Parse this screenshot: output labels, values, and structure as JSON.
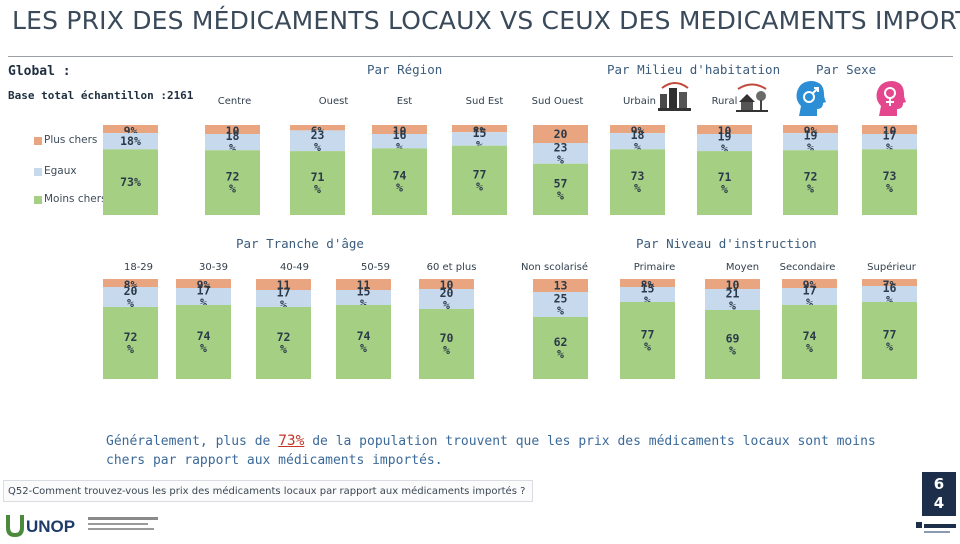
{
  "title": "LES PRIX DES MÉDICAMENTS LOCAUX VS CEUX DES MEDICAMENTS IMPORTÉS",
  "global_label": "Global :",
  "base_label": "Base total échantillon :2161",
  "legend": [
    {
      "label": "Plus chers",
      "color": "#e9a57f"
    },
    {
      "label": "Egaux",
      "color": "#c7d9ec"
    },
    {
      "label": "Moins chers",
      "color": "#a5cf83"
    }
  ],
  "section_headers": {
    "region": "Par Région",
    "milieu": "Par Milieu d'habitation",
    "sexe": "Par Sexe",
    "age": "Par Tranche d'âge",
    "instruction": "Par Niveau d'instruction"
  },
  "summary": {
    "before": "Généralement, plus de ",
    "highlight": "73%",
    "after": " de la population trouvent que les prix des médicaments locaux sont moins chers par rapport aux médicaments importés."
  },
  "question": "Q52-Comment trouvez-vous les prix des médicaments locaux par rapport aux médicaments importés ?",
  "page_number": [
    "6",
    "4"
  ],
  "logo_text": "UNOP",
  "colors": {
    "plus": "#e9a57f",
    "egaux": "#c7d9ec",
    "moins": "#a5cf83",
    "header": "#3b5c7c"
  },
  "chart_data": [
    {
      "type": "bar",
      "stacked": true,
      "group": "Global",
      "categories": [
        "Global"
      ],
      "series": [
        {
          "name": "Plus chers",
          "values": [
            9
          ]
        },
        {
          "name": "Egaux",
          "values": [
            18
          ]
        },
        {
          "name": "Moins chers",
          "values": [
            73
          ]
        }
      ],
      "labels": {
        "Plus chers": [
          "9%"
        ],
        "Egaux": [
          "18%"
        ],
        "Moins chers": [
          "73%"
        ]
      }
    },
    {
      "type": "bar",
      "stacked": true,
      "group": "Par Région",
      "categories": [
        "Centre",
        "Ouest",
        "Est",
        "Sud Est",
        "Sud Ouest"
      ],
      "series": [
        {
          "name": "Plus chers",
          "values": [
            10,
            6,
            10,
            8,
            20
          ]
        },
        {
          "name": "Egaux",
          "values": [
            18,
            23,
            16,
            15,
            23
          ]
        },
        {
          "name": "Moins chers",
          "values": [
            72,
            71,
            74,
            77,
            57
          ]
        }
      ],
      "labels": {
        "Plus chers": [
          "10",
          "6%",
          "10",
          "8%",
          "20"
        ],
        "Egaux": [
          "18 %",
          "23 %",
          "16 %",
          "15 %",
          "23 %"
        ],
        "Moins chers": [
          "72 %",
          "71 %",
          "74 %",
          "77 %",
          "57 %"
        ]
      }
    },
    {
      "type": "bar",
      "stacked": true,
      "group": "Par Milieu d'habitation",
      "categories": [
        "Urbain",
        "Rural"
      ],
      "series": [
        {
          "name": "Plus chers",
          "values": [
            9,
            10
          ]
        },
        {
          "name": "Egaux",
          "values": [
            18,
            19
          ]
        },
        {
          "name": "Moins chers",
          "values": [
            73,
            71
          ]
        }
      ],
      "labels": {
        "Plus chers": [
          "9%",
          "10"
        ],
        "Egaux": [
          "18 %",
          "19 %"
        ],
        "Moins chers": [
          "73 %",
          "71 %"
        ]
      }
    },
    {
      "type": "bar",
      "stacked": true,
      "group": "Par Sexe",
      "categories": [
        "Homme",
        "Femme"
      ],
      "series": [
        {
          "name": "Plus chers",
          "values": [
            9,
            10
          ]
        },
        {
          "name": "Egaux",
          "values": [
            19,
            17
          ]
        },
        {
          "name": "Moins chers",
          "values": [
            72,
            73
          ]
        }
      ],
      "labels": {
        "Plus chers": [
          "9%",
          "10"
        ],
        "Egaux": [
          "19 %",
          "17 %"
        ],
        "Moins chers": [
          "72 %",
          "73 %"
        ]
      }
    },
    {
      "type": "bar",
      "stacked": true,
      "group": "Par Tranche d'âge",
      "categories": [
        "18-29",
        "30-39",
        "40-49",
        "50-59",
        "60 et plus"
      ],
      "series": [
        {
          "name": "Plus chers",
          "values": [
            8,
            9,
            11,
            11,
            10
          ]
        },
        {
          "name": "Egaux",
          "values": [
            20,
            17,
            17,
            15,
            20
          ]
        },
        {
          "name": "Moins chers",
          "values": [
            72,
            74,
            72,
            74,
            70
          ]
        }
      ],
      "labels": {
        "Plus chers": [
          "8%",
          "9%",
          "11",
          "11",
          "10"
        ],
        "Egaux": [
          "20 %",
          "17 %",
          "17 %",
          "15 %",
          "20 %"
        ],
        "Moins chers": [
          "72 %",
          "74 %",
          "72 %",
          "74 %",
          "70 %"
        ]
      }
    },
    {
      "type": "bar",
      "stacked": true,
      "group": "Par Niveau d'instruction",
      "categories": [
        "Non scolarisé",
        "Primaire",
        "Moyen",
        "Secondaire",
        "Supérieur"
      ],
      "series": [
        {
          "name": "Plus chers",
          "values": [
            13,
            8,
            10,
            9,
            7
          ]
        },
        {
          "name": "Egaux",
          "values": [
            25,
            15,
            21,
            17,
            16
          ]
        },
        {
          "name": "Moins chers",
          "values": [
            62,
            77,
            69,
            74,
            77
          ]
        }
      ],
      "labels": {
        "Plus chers": [
          "13",
          "8%",
          "10",
          "9%",
          "7%"
        ],
        "Egaux": [
          "25 %",
          "15 %",
          "21 %",
          "17 %",
          "16 %"
        ],
        "Moins chers": [
          "62 %",
          "77 %",
          "69 %",
          "74 %",
          "77 %"
        ]
      }
    }
  ]
}
